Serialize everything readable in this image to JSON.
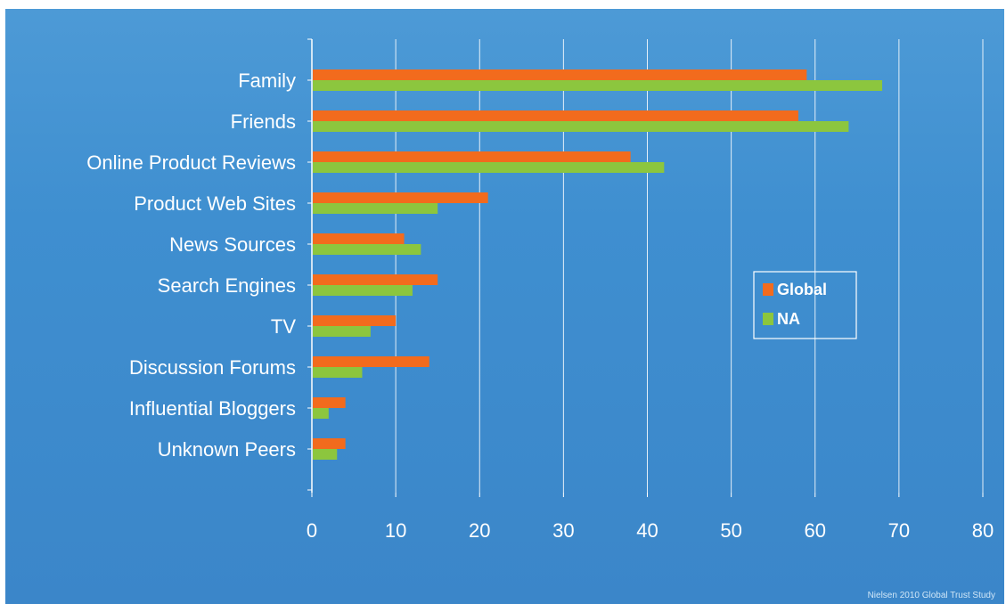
{
  "chart_data": {
    "type": "bar",
    "orientation": "horizontal",
    "categories": [
      "Family",
      "Friends",
      "Online Product Reviews",
      "Product Web Sites",
      "News Sources",
      "Search Engines",
      "TV",
      "Discussion Forums",
      "Influential Bloggers",
      "Unknown Peers"
    ],
    "series": [
      {
        "name": "Global",
        "values": [
          59,
          58,
          38,
          21,
          11,
          15,
          10,
          14,
          4,
          4
        ]
      },
      {
        "name": "NA",
        "values": [
          68,
          64,
          42,
          15,
          13,
          12,
          7,
          6,
          2,
          3
        ]
      }
    ],
    "xlim": [
      0,
      80
    ],
    "xticks": [
      0,
      10,
      20,
      30,
      40,
      50,
      60,
      70,
      80
    ],
    "grid": true,
    "legend_position": "right",
    "source_note": "Nielsen 2010 Global Trust Study"
  },
  "colors": {
    "Global": "#f26b1d",
    "NA": "#8cc63e",
    "grid": "#ffffff",
    "text": "#ffffff"
  }
}
